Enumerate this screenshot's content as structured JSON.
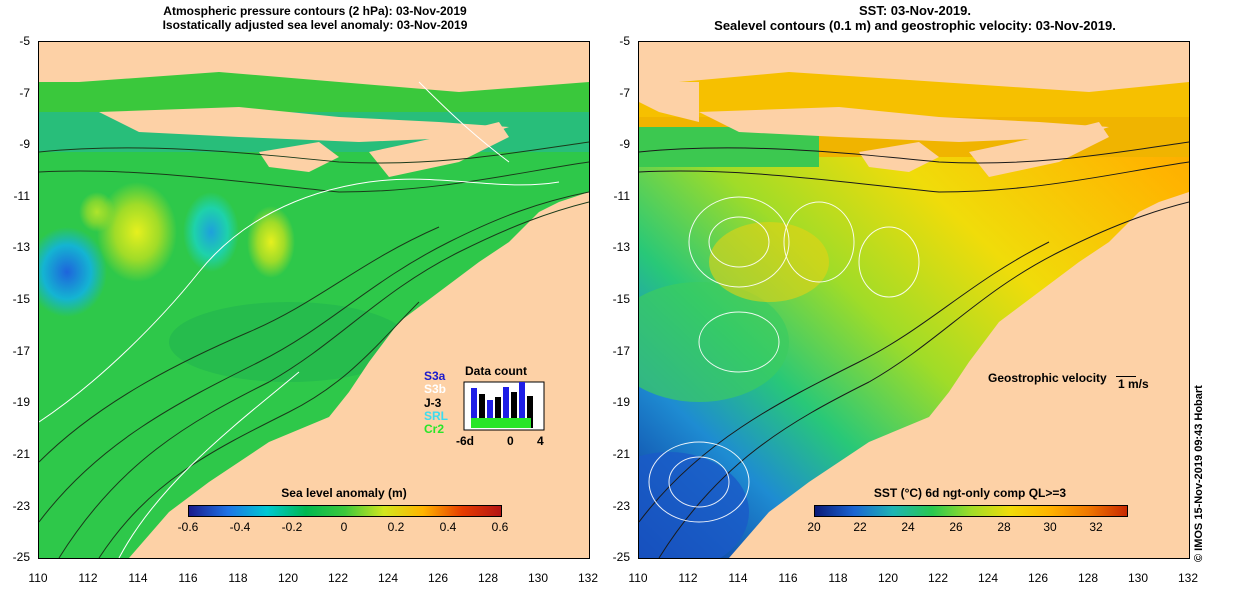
{
  "left_panel": {
    "title_line1": "Atmospheric pressure contours (2 hPa): 03-Nov-2019",
    "title_line2": "Isostatically adjusted sea level anomaly: 03-Nov-2019",
    "colorbar_label": "Sea level anomaly (m)",
    "colorbar_ticks": [
      "-0.6",
      "-0.4",
      "-0.2",
      "0",
      "0.2",
      "0.4",
      "0.6"
    ],
    "y_ticks": [
      "-5",
      "-7",
      "-9",
      "-11",
      "-13",
      "-15",
      "-17",
      "-19",
      "-21",
      "-23",
      "-25"
    ],
    "x_ticks": [
      "110",
      "112",
      "114",
      "116",
      "118",
      "120",
      "122",
      "124",
      "126",
      "128",
      "130",
      "132"
    ],
    "data_count": {
      "title": "Data count",
      "satellites": [
        "S3a",
        "S3b",
        "J-3",
        "SRL",
        "Cr2"
      ],
      "axis_labels": [
        "-6d",
        "0",
        "4"
      ]
    }
  },
  "right_panel": {
    "title_line1": "SST: 03-Nov-2019.",
    "title_line2": "Sealevel contours (0.1 m) and geostrophic velocity: 03-Nov-2019.",
    "colorbar_label": "SST (°C) 6d ngt-only comp QL>=3",
    "colorbar_ticks": [
      "20",
      "22",
      "24",
      "26",
      "28",
      "30",
      "32"
    ],
    "y_ticks": [
      "-5",
      "-7",
      "-9",
      "-11",
      "-13",
      "-15",
      "-17",
      "-19",
      "-21",
      "-23",
      "-25"
    ],
    "x_ticks": [
      "110",
      "112",
      "114",
      "116",
      "118",
      "120",
      "122",
      "124",
      "126",
      "128",
      "130",
      "132"
    ],
    "velocity_label": "Geostrophic velocity",
    "velocity_scale": "1 m/s"
  },
  "credit": "© IMOS 15-Nov-2019 09:43 Hobart",
  "colors": {
    "land": "#fdd1a6",
    "sla_gradient": [
      "#1a1a8c",
      "#1e73e6",
      "#00c8d2",
      "#00b850",
      "#3cc83c",
      "#d2e61e",
      "#ffb400",
      "#e63c00",
      "#b41414"
    ],
    "sst_gradient": [
      "#0a1a78",
      "#1a64d2",
      "#1eb4b4",
      "#28c850",
      "#a0dc28",
      "#f0dc0a",
      "#ffb400",
      "#f07800",
      "#c82800"
    ]
  }
}
